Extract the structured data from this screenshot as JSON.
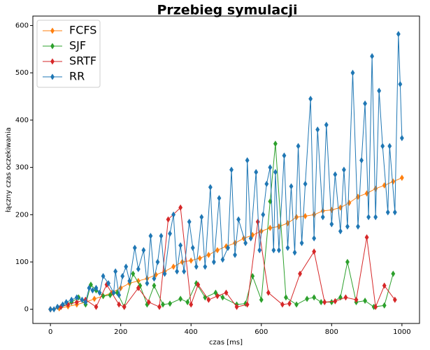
{
  "chart_data": {
    "type": "line",
    "title": "Przebieg symulacji",
    "x_label": "czas [ms]",
    "y_label": "łączny czas oczekiwania",
    "xlim": [
      -50,
      1050
    ],
    "ylim": [
      -30,
      620
    ],
    "xticks": [
      0,
      200,
      400,
      600,
      800,
      1000
    ],
    "yticks": [
      0,
      100,
      200,
      300,
      400,
      500,
      600
    ],
    "legend": "upper left",
    "series": [
      {
        "name": "FCFS",
        "color": "#ff7f0e",
        "x": [
          0,
          25,
          50,
          75,
          100,
          125,
          150,
          175,
          200,
          225,
          250,
          275,
          300,
          325,
          350,
          375,
          400,
          425,
          450,
          475,
          500,
          525,
          550,
          575,
          600,
          625,
          650,
          675,
          700,
          725,
          750,
          775,
          800,
          825,
          850,
          875,
          900,
          925,
          950,
          975,
          1000
        ],
        "values": [
          0,
          2,
          6,
          10,
          15,
          22,
          28,
          35,
          45,
          55,
          60,
          65,
          73,
          80,
          90,
          100,
          103,
          108,
          115,
          125,
          133,
          140,
          150,
          157,
          165,
          172,
          175,
          182,
          195,
          197,
          200,
          208,
          210,
          215,
          225,
          238,
          245,
          255,
          262,
          270,
          278
        ]
      },
      {
        "name": "SJF",
        "color": "#2ca02c",
        "x": [
          0,
          30,
          60,
          80,
          100,
          115,
          130,
          150,
          170,
          190,
          210,
          235,
          255,
          275,
          295,
          320,
          340,
          370,
          390,
          415,
          440,
          470,
          490,
          530,
          555,
          575,
          600,
          625,
          640,
          670,
          700,
          730,
          750,
          770,
          800,
          825,
          845,
          870,
          895,
          920,
          950,
          975
        ],
        "values": [
          0,
          5,
          15,
          25,
          10,
          52,
          40,
          28,
          30,
          35,
          5,
          75,
          50,
          10,
          50,
          10,
          12,
          22,
          15,
          55,
          25,
          35,
          25,
          10,
          12,
          70,
          20,
          228,
          350,
          25,
          10,
          22,
          25,
          15,
          15,
          25,
          100,
          15,
          18,
          5,
          8,
          75
        ]
      },
      {
        "name": "SRTF",
        "color": "#d62728",
        "x": [
          0,
          30,
          50,
          75,
          100,
          130,
          160,
          195,
          210,
          250,
          280,
          310,
          335,
          370,
          400,
          420,
          450,
          475,
          500,
          530,
          560,
          590,
          620,
          660,
          680,
          710,
          750,
          780,
          810,
          840,
          870,
          900,
          925,
          950,
          980
        ],
        "values": [
          0,
          5,
          10,
          15,
          20,
          5,
          52,
          10,
          5,
          45,
          15,
          5,
          190,
          215,
          10,
          52,
          20,
          28,
          35,
          5,
          10,
          185,
          35,
          10,
          12,
          75,
          122,
          15,
          17,
          25,
          20,
          152,
          5,
          50,
          20
        ]
      },
      {
        "name": "RR",
        "color": "#1f77b4",
        "x": [
          0,
          10,
          20,
          35,
          45,
          60,
          75,
          90,
          100,
          110,
          120,
          130,
          140,
          150,
          165,
          180,
          185,
          195,
          205,
          215,
          225,
          240,
          250,
          265,
          275,
          285,
          295,
          305,
          315,
          325,
          340,
          350,
          360,
          370,
          380,
          395,
          405,
          415,
          430,
          440,
          455,
          465,
          480,
          490,
          505,
          515,
          525,
          535,
          555,
          560,
          570,
          585,
          595,
          605,
          615,
          625,
          635,
          640,
          650,
          665,
          675,
          685,
          695,
          705,
          715,
          725,
          740,
          750,
          760,
          775,
          785,
          800,
          810,
          825,
          835,
          845,
          860,
          875,
          885,
          895,
          905,
          915,
          925,
          935,
          945,
          960,
          965,
          980,
          990,
          995,
          1000
        ],
        "values": [
          0,
          0,
          5,
          10,
          15,
          20,
          25,
          20,
          15,
          45,
          40,
          45,
          35,
          70,
          55,
          35,
          80,
          30,
          70,
          90,
          60,
          130,
          85,
          125,
          55,
          155,
          65,
          100,
          155,
          75,
          160,
          200,
          80,
          135,
          80,
          185,
          130,
          90,
          195,
          90,
          258,
          100,
          235,
          105,
          130,
          295,
          115,
          190,
          140,
          315,
          150,
          290,
          125,
          200,
          265,
          300,
          125,
          290,
          125,
          325,
          130,
          260,
          120,
          345,
          140,
          265,
          445,
          150,
          380,
          195,
          390,
          180,
          285,
          165,
          295,
          175,
          500,
          175,
          315,
          435,
          195,
          535,
          195,
          462,
          345,
          205,
          345,
          205,
          582,
          476,
          362
        ]
      }
    ]
  }
}
